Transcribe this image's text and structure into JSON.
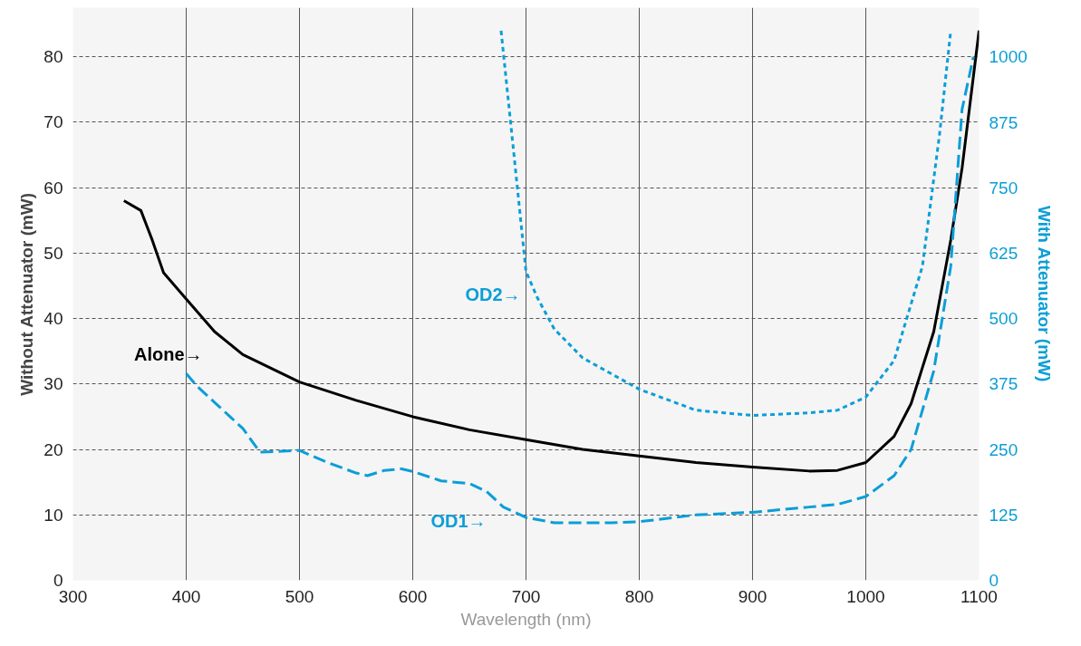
{
  "chart_data": {
    "type": "line",
    "xlabel": "Wavelength (nm)",
    "ylabel": "Without Attenuator (mW)",
    "y2label": "With Attenuator (mW)",
    "xlim": [
      300,
      1100
    ],
    "xticks": [
      300,
      400,
      500,
      600,
      700,
      800,
      900,
      1000,
      1100
    ],
    "ylim": [
      0,
      87.5
    ],
    "yticks": [
      0,
      10,
      20,
      30,
      40,
      50,
      60,
      70,
      80
    ],
    "y2lim": [
      0,
      1094
    ],
    "y2ticks": [
      0,
      125,
      250,
      375,
      500,
      625,
      750,
      875,
      1000
    ],
    "grid": true,
    "marker": "none",
    "series": [
      {
        "color": "#000000",
        "line_style": "solid",
        "x": [
          345,
          360,
          370,
          380,
          390,
          400,
          425,
          450,
          500,
          550,
          600,
          650,
          700,
          750,
          800,
          850,
          900,
          950,
          975,
          1000,
          1025,
          1040,
          1060,
          1075,
          1085,
          1100
        ],
        "values": [
          58,
          56.5,
          52,
          47,
          45,
          43,
          38,
          34.5,
          30.3,
          27.5,
          25,
          23,
          21.5,
          20,
          19,
          18,
          17.3,
          16.7,
          16.8,
          18,
          22,
          27,
          38,
          52,
          63,
          84
        ]
      },
      {
        "color": "#0b9ed7",
        "line_style": "dotted",
        "axis": "y2",
        "x": [
          678,
          690,
          700,
          710,
          725,
          750,
          775,
          800,
          850,
          875,
          900,
          950,
          975,
          1000,
          1025,
          1050,
          1065,
          1075
        ],
        "values": [
          1050,
          800,
          590,
          540,
          480,
          425,
          395,
          365,
          325,
          320,
          315,
          320,
          325,
          350,
          420,
          600,
          850,
          1050
        ]
      },
      {
        "color": "#0b9ed7",
        "line_style": "dashed",
        "axis": "y2",
        "x": [
          400,
          410,
          425,
          450,
          465,
          500,
          525,
          550,
          560,
          575,
          590,
          600,
          625,
          650,
          665,
          680,
          700,
          725,
          775,
          800,
          850,
          900,
          950,
          975,
          1000,
          1025,
          1040,
          1060,
          1075,
          1085,
          1095
        ],
        "values": [
          395,
          370,
          340,
          290,
          245,
          248,
          225,
          205,
          200,
          210,
          213,
          208,
          190,
          185,
          170,
          140,
          120,
          110,
          110,
          112,
          125,
          130,
          140,
          145,
          160,
          200,
          250,
          400,
          600,
          900,
          1000
        ]
      }
    ],
    "annotations": [
      "Alone→",
      "OD2→",
      "OD1→"
    ]
  }
}
